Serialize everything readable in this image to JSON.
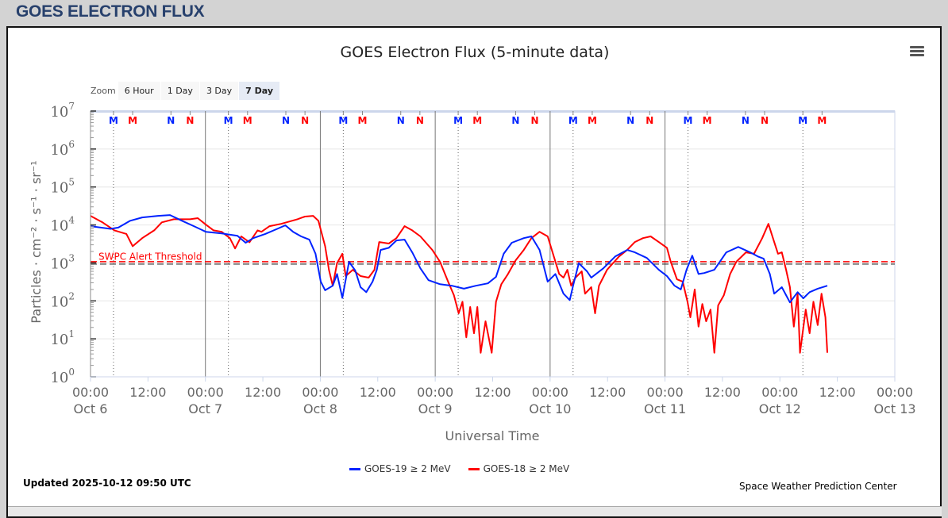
{
  "page": {
    "title": "GOES ELECTRON FLUX"
  },
  "zoom": {
    "label": "Zoom",
    "buttons": [
      "6 Hour",
      "1 Day",
      "3 Day",
      "7 Day"
    ],
    "selected": "7 Day"
  },
  "menu_icon": "hamburger-menu-icon",
  "footer": {
    "updated": "Updated 2025-10-12 09:50 UTC",
    "credit": "Space Weather Prediction Center"
  },
  "colors": {
    "goes19": "#0022ff",
    "goes18": "#ff0000",
    "threshold": "#ff0000"
  },
  "chart_data": {
    "type": "line",
    "title": "GOES Electron Flux (5-minute data)",
    "xlabel": "Universal Time",
    "ylabel": "Particles · cm⁻² · s⁻¹ · sr⁻¹",
    "yscale": "log",
    "ylim": [
      1,
      10000000
    ],
    "y_ticks": [
      {
        "base": "10",
        "exp": "0"
      },
      {
        "base": "10",
        "exp": "1"
      },
      {
        "base": "10",
        "exp": "2"
      },
      {
        "base": "10",
        "exp": "3"
      },
      {
        "base": "10",
        "exp": "4"
      },
      {
        "base": "10",
        "exp": "5"
      },
      {
        "base": "10",
        "exp": "6"
      },
      {
        "base": "10",
        "exp": "7"
      }
    ],
    "x_unit": "hours since 2025-10-06 00:00 UTC",
    "xlim": [
      0,
      168
    ],
    "x_ticks": [
      {
        "h": 0,
        "time": "00:00",
        "date": "Oct 6"
      },
      {
        "h": 12,
        "time": "12:00",
        "date": ""
      },
      {
        "h": 24,
        "time": "00:00",
        "date": "Oct 7"
      },
      {
        "h": 36,
        "time": "12:00",
        "date": ""
      },
      {
        "h": 48,
        "time": "00:00",
        "date": "Oct 8"
      },
      {
        "h": 60,
        "time": "12:00",
        "date": ""
      },
      {
        "h": 72,
        "time": "00:00",
        "date": "Oct 9"
      },
      {
        "h": 84,
        "time": "12:00",
        "date": ""
      },
      {
        "h": 96,
        "time": "00:00",
        "date": "Oct 10"
      },
      {
        "h": 108,
        "time": "12:00",
        "date": ""
      },
      {
        "h": 120,
        "time": "00:00",
        "date": "Oct 11"
      },
      {
        "h": 132,
        "time": "12:00",
        "date": ""
      },
      {
        "h": 144,
        "time": "00:00",
        "date": "Oct 12"
      },
      {
        "h": 156,
        "time": "12:00",
        "date": ""
      },
      {
        "h": 168,
        "time": "00:00",
        "date": "Oct 13"
      }
    ],
    "threshold": {
      "label": "SWPC Alert Threshold",
      "value": 1000
    },
    "day_lines_hours": [
      24,
      48,
      72,
      96,
      120
    ],
    "markers": [
      {
        "label": "M",
        "color": "#0022ff",
        "hours": [
          4.8,
          28.8,
          52.8,
          76.8,
          100.8,
          124.8,
          148.8
        ],
        "dotted_line": true
      },
      {
        "label": "M",
        "color": "#ff0000",
        "hours": [
          8.8,
          32.8,
          56.8,
          80.8,
          104.8,
          128.8,
          152.8
        ],
        "dotted_line": false
      },
      {
        "label": "N",
        "color": "#0022ff",
        "hours": [
          16.8,
          40.8,
          64.8,
          88.8,
          112.8,
          136.8
        ],
        "dotted_line": false
      },
      {
        "label": "N",
        "color": "#ff0000",
        "hours": [
          20.8,
          44.8,
          68.8,
          92.8,
          116.8,
          140.8
        ],
        "dotted_line": false
      }
    ],
    "series": [
      {
        "name": "GOES-19 ≥ 2 MeV",
        "color": "#0022ff",
        "points": [
          [
            0,
            9300
          ],
          [
            4.2,
            7900
          ],
          [
            5.8,
            8500
          ],
          [
            8.3,
            12900
          ],
          [
            10.8,
            15800
          ],
          [
            14.1,
            17400
          ],
          [
            16.6,
            18200
          ],
          [
            19.1,
            12900
          ],
          [
            21.6,
            9300
          ],
          [
            24.1,
            6600
          ],
          [
            27.4,
            6000
          ],
          [
            30.7,
            5200
          ],
          [
            32.4,
            3400
          ],
          [
            34.0,
            4500
          ],
          [
            36.5,
            5800
          ],
          [
            39.0,
            7900
          ],
          [
            40.7,
            9800
          ],
          [
            42.3,
            6600
          ],
          [
            44.0,
            5000
          ],
          [
            45.7,
            4100
          ],
          [
            47.0,
            1740
          ],
          [
            48.1,
            320
          ],
          [
            49.0,
            190
          ],
          [
            50.6,
            250
          ],
          [
            51.5,
            510
          ],
          [
            52.6,
            120
          ],
          [
            54.0,
            1070
          ],
          [
            55.3,
            630
          ],
          [
            56.4,
            230
          ],
          [
            57.6,
            170
          ],
          [
            58.9,
            320
          ],
          [
            59.8,
            660
          ],
          [
            60.6,
            2190
          ],
          [
            62.3,
            2500
          ],
          [
            63.9,
            3900
          ],
          [
            65.6,
            4100
          ],
          [
            67.2,
            1900
          ],
          [
            68.9,
            720
          ],
          [
            70.6,
            350
          ],
          [
            73.0,
            275
          ],
          [
            75.5,
            250
          ],
          [
            78.0,
            210
          ],
          [
            80.5,
            250
          ],
          [
            83.0,
            290
          ],
          [
            84.7,
            430
          ],
          [
            86.3,
            1740
          ],
          [
            88.0,
            3400
          ],
          [
            90.5,
            4500
          ],
          [
            92.1,
            5000
          ],
          [
            93.8,
            2190
          ],
          [
            95.5,
            320
          ],
          [
            97.1,
            510
          ],
          [
            98.8,
            155
          ],
          [
            100.1,
            105
          ],
          [
            100.8,
            250
          ],
          [
            102.0,
            980
          ],
          [
            103.7,
            600
          ],
          [
            104.6,
            410
          ],
          [
            107.1,
            720
          ],
          [
            109.6,
            1480
          ],
          [
            112.1,
            2190
          ],
          [
            113.7,
            1900
          ],
          [
            116.2,
            1350
          ],
          [
            118.7,
            660
          ],
          [
            120.4,
            450
          ],
          [
            122.0,
            250
          ],
          [
            123.3,
            200
          ],
          [
            124.5,
            660
          ],
          [
            125.7,
            1550
          ],
          [
            127.0,
            510
          ],
          [
            128.2,
            540
          ],
          [
            130.3,
            660
          ],
          [
            132.8,
            1900
          ],
          [
            135.3,
            2630
          ],
          [
            137.8,
            1900
          ],
          [
            139.4,
            1480
          ],
          [
            140.6,
            1290
          ],
          [
            141.9,
            510
          ],
          [
            142.8,
            155
          ],
          [
            144.4,
            230
          ],
          [
            146.1,
            91
          ],
          [
            147.7,
            170
          ],
          [
            148.9,
            117
          ],
          [
            150.2,
            170
          ],
          [
            151.9,
            210
          ],
          [
            153.9,
            250
          ]
        ]
      },
      {
        "name": "GOES-18 ≥ 2 MeV",
        "color": "#ff0000",
        "points": [
          [
            0,
            17400
          ],
          [
            2.5,
            11700
          ],
          [
            5.0,
            7200
          ],
          [
            7.5,
            5800
          ],
          [
            8.8,
            2750
          ],
          [
            10.8,
            4500
          ],
          [
            13.3,
            7200
          ],
          [
            14.9,
            11700
          ],
          [
            17.4,
            14100
          ],
          [
            20.8,
            14100
          ],
          [
            22.4,
            15100
          ],
          [
            24.1,
            10200
          ],
          [
            25.7,
            7200
          ],
          [
            27.4,
            6600
          ],
          [
            29.1,
            4500
          ],
          [
            30.2,
            2400
          ],
          [
            31.5,
            5000
          ],
          [
            33.2,
            3500
          ],
          [
            34.9,
            7200
          ],
          [
            35.7,
            6600
          ],
          [
            37.4,
            9300
          ],
          [
            39.8,
            10700
          ],
          [
            43.2,
            14100
          ],
          [
            44.8,
            16600
          ],
          [
            46.5,
            17400
          ],
          [
            47.6,
            12900
          ],
          [
            49.0,
            2750
          ],
          [
            49.8,
            660
          ],
          [
            50.6,
            250
          ],
          [
            51.5,
            980
          ],
          [
            52.6,
            1740
          ],
          [
            53.3,
            450
          ],
          [
            54.8,
            660
          ],
          [
            56.4,
            450
          ],
          [
            58.1,
            410
          ],
          [
            59.3,
            660
          ],
          [
            60.3,
            3550
          ],
          [
            62.3,
            3240
          ],
          [
            63.9,
            4500
          ],
          [
            65.6,
            9300
          ],
          [
            67.2,
            7200
          ],
          [
            68.9,
            5000
          ],
          [
            71.4,
            2190
          ],
          [
            73.0,
            1070
          ],
          [
            74.7,
            320
          ],
          [
            75.9,
            141
          ],
          [
            76.9,
            47
          ],
          [
            77.7,
            95
          ],
          [
            78.5,
            11
          ],
          [
            79.3,
            69
          ],
          [
            80.1,
            14
          ],
          [
            80.8,
            69
          ],
          [
            81.5,
            4.3
          ],
          [
            82.5,
            29
          ],
          [
            83.8,
            4.3
          ],
          [
            84.7,
            95
          ],
          [
            85.8,
            275
          ],
          [
            87.2,
            510
          ],
          [
            88.8,
            1170
          ],
          [
            90.5,
            2190
          ],
          [
            92.1,
            4500
          ],
          [
            93.8,
            6600
          ],
          [
            95.5,
            5000
          ],
          [
            96.6,
            1740
          ],
          [
            97.9,
            510
          ],
          [
            98.8,
            410
          ],
          [
            99.6,
            660
          ],
          [
            100.4,
            250
          ],
          [
            101.3,
            410
          ],
          [
            102.6,
            600
          ],
          [
            103.3,
            155
          ],
          [
            104.6,
            230
          ],
          [
            105.4,
            47
          ],
          [
            106.2,
            250
          ],
          [
            107.9,
            660
          ],
          [
            110.4,
            1480
          ],
          [
            112.1,
            2190
          ],
          [
            113.7,
            3550
          ],
          [
            115.4,
            4500
          ],
          [
            117.0,
            5000
          ],
          [
            118.7,
            3550
          ],
          [
            120.4,
            2500
          ],
          [
            121.2,
            1070
          ],
          [
            122.5,
            370
          ],
          [
            123.7,
            320
          ],
          [
            124.7,
            95
          ],
          [
            125.3,
            37
          ],
          [
            126.2,
            200
          ],
          [
            127.0,
            21
          ],
          [
            127.8,
            83
          ],
          [
            128.6,
            29
          ],
          [
            129.5,
            59
          ],
          [
            130.3,
            4.3
          ],
          [
            131.1,
            76
          ],
          [
            132.3,
            141
          ],
          [
            133.6,
            510
          ],
          [
            134.9,
            1070
          ],
          [
            136.9,
            1900
          ],
          [
            138.6,
            1740
          ],
          [
            140.3,
            4500
          ],
          [
            141.6,
            10700
          ],
          [
            142.8,
            3550
          ],
          [
            143.6,
            1740
          ],
          [
            144.4,
            1900
          ],
          [
            145.3,
            660
          ],
          [
            146.1,
            230
          ],
          [
            146.9,
            21
          ],
          [
            147.7,
            155
          ],
          [
            148.2,
            4.3
          ],
          [
            149.4,
            59
          ],
          [
            150.2,
            14
          ],
          [
            151.0,
            95
          ],
          [
            151.9,
            23
          ],
          [
            152.7,
            155
          ],
          [
            153.5,
            37
          ],
          [
            153.9,
            4.3
          ]
        ]
      }
    ],
    "legend": "bottom-center",
    "grid": true
  }
}
